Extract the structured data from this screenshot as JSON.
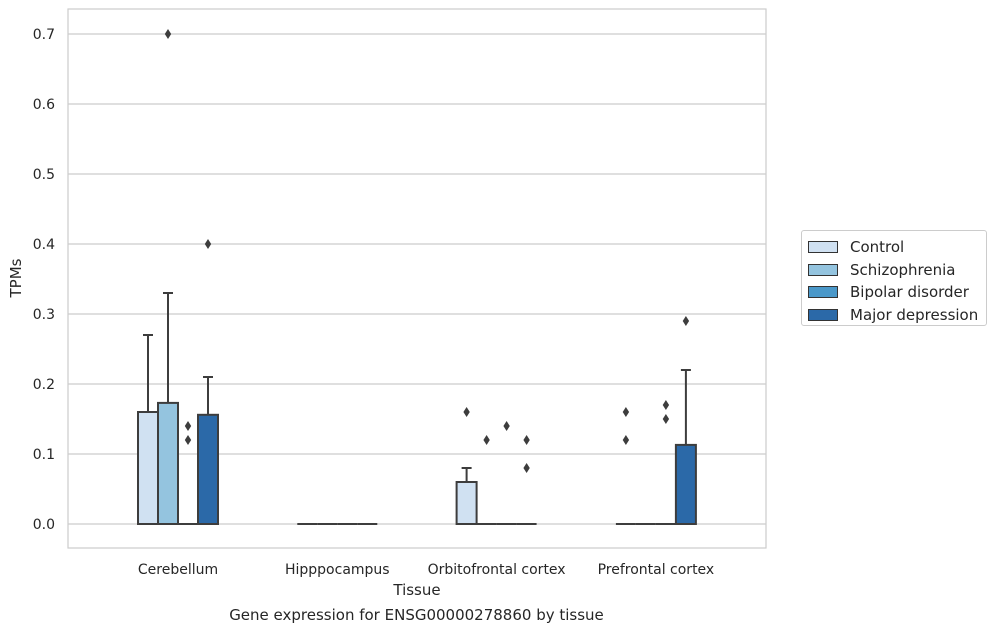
{
  "chart_data": {
    "type": "bar",
    "xlabel": "Tissue",
    "ylabel": "TPMs",
    "caption": "Gene expression for ENSG00000278860 by tissue",
    "ylim": [
      -0.035,
      0.735
    ],
    "yticks": [
      0.0,
      0.1,
      0.2,
      0.3,
      0.4,
      0.5,
      0.6,
      0.7
    ],
    "ytick_labels": [
      "0.0",
      "0.1",
      "0.2",
      "0.3",
      "0.4",
      "0.5",
      "0.6",
      "0.7"
    ],
    "grid": "horizontal",
    "legend_position": "right",
    "categories": [
      "Cerebellum",
      "Hipppocampus",
      "Orbitofrontal cortex",
      "Prefrontal cortex"
    ],
    "series": [
      {
        "name": "Control",
        "color": "#d0e1f2",
        "values": [
          0.16,
          0.0,
          0.06,
          0.0
        ],
        "error_upper": [
          0.27,
          null,
          0.08,
          null
        ],
        "outliers": [
          [],
          [],
          [
            0.16
          ],
          [
            0.16,
            0.12
          ]
        ]
      },
      {
        "name": "Schizophrenia",
        "color": "#94c4df",
        "values": [
          0.173,
          0.0,
          0.0,
          0.0
        ],
        "error_upper": [
          0.33,
          null,
          null,
          null
        ],
        "outliers": [
          [
            0.7
          ],
          [],
          [
            0.12
          ],
          []
        ]
      },
      {
        "name": "Bipolar disorder",
        "color": "#4a98c9",
        "values": [
          0.0,
          0.0,
          0.0,
          0.0
        ],
        "error_upper": [
          null,
          null,
          null,
          null
        ],
        "outliers": [
          [
            0.14,
            0.12
          ],
          [],
          [
            0.14
          ],
          [
            0.17,
            0.15
          ]
        ]
      },
      {
        "name": "Major depression",
        "color": "#2b69a8",
        "values": [
          0.156,
          0.0,
          0.0,
          0.113
        ],
        "error_upper": [
          0.21,
          null,
          null,
          0.22
        ],
        "outliers": [
          [
            0.4
          ],
          [],
          [
            0.12,
            0.08
          ],
          [
            0.29
          ]
        ]
      }
    ]
  }
}
